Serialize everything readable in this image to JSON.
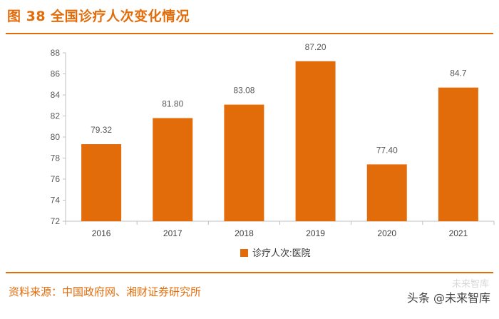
{
  "figure": {
    "title": "图 38  全国诊疗人次变化情况",
    "source": "资料来源：中国政府网、湘财证券研究所",
    "watermark": "头条 @未来智库",
    "watermark_faint": "未来智库"
  },
  "colors": {
    "accent": "#E36C0A",
    "bar": "#E36C0A"
  },
  "chart_data": {
    "type": "bar",
    "title": "",
    "xlabel": "",
    "ylabel": "",
    "categories": [
      "2016",
      "2017",
      "2018",
      "2019",
      "2020",
      "2021"
    ],
    "series": [
      {
        "name": "诊疗人次:医院",
        "values": [
          79.32,
          81.8,
          83.08,
          87.2,
          77.4,
          84.7
        ],
        "labels": [
          "79.32",
          "81.80",
          "83.08",
          "87.20",
          "77.40",
          "84.7"
        ]
      }
    ],
    "ylim": [
      72,
      88
    ],
    "yticks": [
      "72",
      "74",
      "76",
      "78",
      "80",
      "82",
      "84",
      "86",
      "88"
    ],
    "grid": false,
    "legend": "bottom-center"
  }
}
